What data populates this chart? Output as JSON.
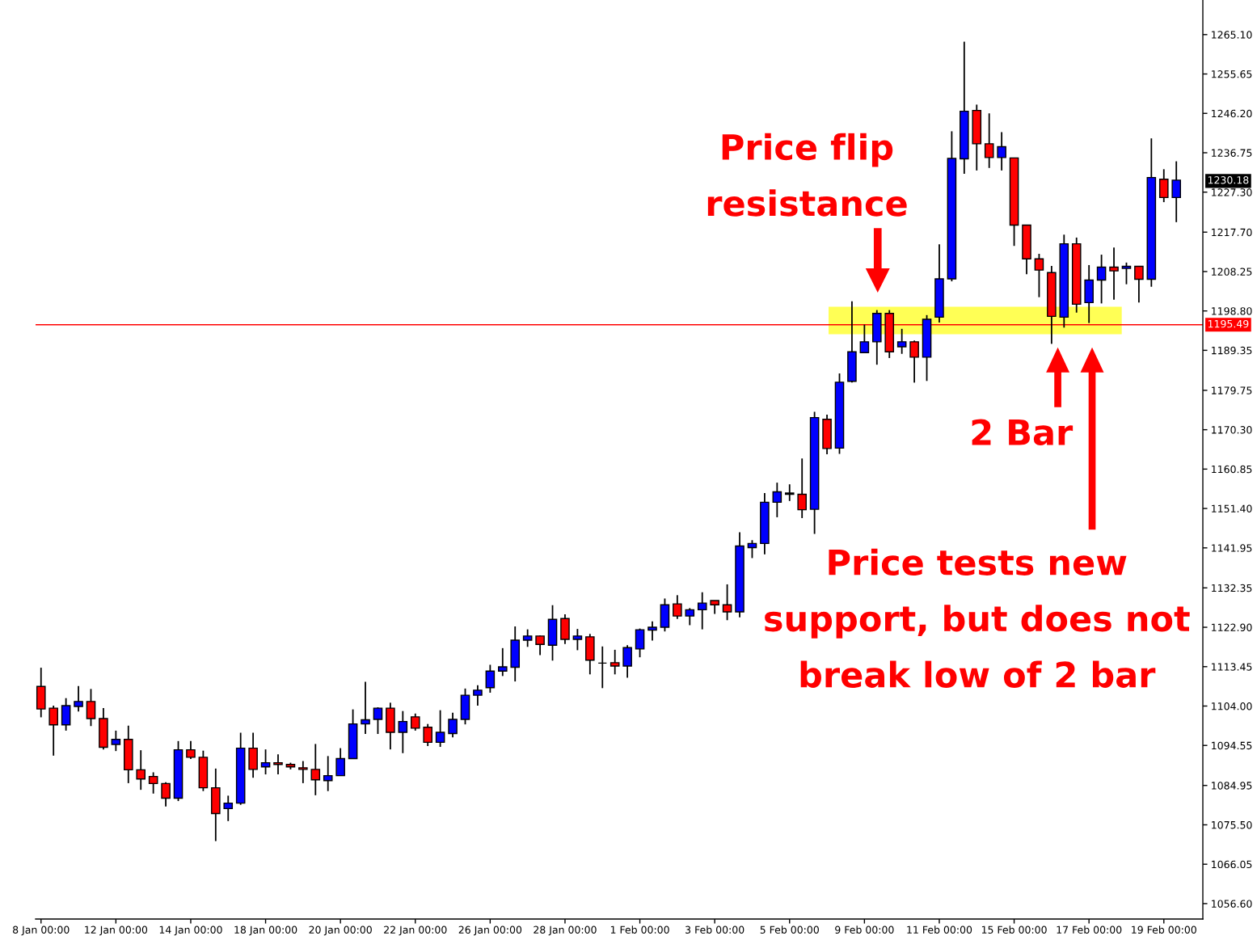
{
  "chart_data": {
    "type": "candlestick",
    "categories": [
      "8 Jan 00:00",
      null,
      null,
      null,
      null,
      null,
      "12 Jan 00:00",
      null,
      null,
      null,
      null,
      null,
      "14 Jan 00:00",
      null,
      null,
      null,
      null,
      null,
      "18 Jan 00:00",
      null,
      null,
      null,
      null,
      null,
      "20 Jan 00:00",
      null,
      null,
      null,
      null,
      null,
      "22 Jan 00:00",
      null,
      null,
      null,
      null,
      null,
      "26 Jan 00:00",
      null,
      null,
      null,
      null,
      null,
      "28 Jan 00:00",
      null,
      null,
      null,
      null,
      null,
      "1 Feb 00:00",
      null,
      null,
      null,
      null,
      null,
      "3 Feb 00:00",
      null,
      null,
      null,
      null,
      null,
      "5 Feb 00:00",
      null,
      null,
      null,
      null,
      null,
      "9 Feb 00:00",
      null,
      null,
      null,
      null,
      null,
      "11 Feb 00:00",
      null,
      null,
      null,
      null,
      null,
      "15 Feb 00:00",
      null,
      null,
      null,
      null,
      null,
      "17 Feb 00:00",
      null,
      null,
      null,
      null,
      null,
      "19 Feb 00:00",
      null
    ],
    "ohlc": [
      [
        1108.7,
        1113.2,
        1101.3,
        1103.3
      ],
      [
        1103.5,
        1104.1,
        1092.1,
        1099.5
      ],
      [
        1099.5,
        1105.9,
        1098.1,
        1104.1
      ],
      [
        1103.9,
        1108.8,
        1102.7,
        1105.1
      ],
      [
        1105.1,
        1108.1,
        1099.2,
        1101.0
      ],
      [
        1101.0,
        1103.5,
        1093.6,
        1094.1
      ],
      [
        1094.8,
        1098.1,
        1093.2,
        1096.0
      ],
      [
        1096.0,
        1099.3,
        1085.5,
        1088.7
      ],
      [
        1088.7,
        1093.4,
        1083.9,
        1086.5
      ],
      [
        1087.1,
        1088.1,
        1083.0,
        1085.4
      ],
      [
        1085.4,
        1085.7,
        1079.9,
        1081.9
      ],
      [
        1081.9,
        1095.6,
        1081.2,
        1093.5
      ],
      [
        1093.5,
        1095.6,
        1091.3,
        1091.7
      ],
      [
        1091.7,
        1093.3,
        1083.6,
        1084.4
      ],
      [
        1084.4,
        1089.0,
        1071.6,
        1078.2
      ],
      [
        1079.4,
        1082.5,
        1076.4,
        1080.7
      ],
      [
        1080.7,
        1097.6,
        1080.3,
        1093.9
      ],
      [
        1093.9,
        1097.6,
        1086.8,
        1088.8
      ],
      [
        1089.4,
        1093.6,
        1087.6,
        1090.4
      ],
      [
        1090.4,
        1092.4,
        1087.6,
        1090.0
      ],
      [
        1090.0,
        1090.4,
        1088.8,
        1089.4
      ],
      [
        1089.2,
        1090.8,
        1085.5,
        1088.8
      ],
      [
        1088.8,
        1094.9,
        1082.6,
        1086.3
      ],
      [
        1086.1,
        1092.0,
        1083.6,
        1087.3
      ],
      [
        1087.3,
        1093.9,
        1087.3,
        1091.4
      ],
      [
        1091.4,
        1103.2,
        1091.4,
        1099.7
      ],
      [
        1099.7,
        1109.8,
        1097.3,
        1100.7
      ],
      [
        1100.8,
        1103.7,
        1097.3,
        1103.5
      ],
      [
        1103.5,
        1104.8,
        1093.6,
        1097.7
      ],
      [
        1097.7,
        1102.8,
        1092.7,
        1100.3
      ],
      [
        1101.4,
        1102.2,
        1098.1,
        1098.7
      ],
      [
        1098.9,
        1099.7,
        1094.4,
        1095.3
      ],
      [
        1095.3,
        1103.0,
        1094.2,
        1097.7
      ],
      [
        1097.4,
        1102.4,
        1096.5,
        1100.8
      ],
      [
        1100.8,
        1108.2,
        1099.6,
        1106.6
      ],
      [
        1106.6,
        1109.0,
        1104.1,
        1107.8
      ],
      [
        1108.4,
        1113.9,
        1107.2,
        1112.4
      ],
      [
        1112.4,
        1117.9,
        1111.2,
        1113.4
      ],
      [
        1113.3,
        1123.1,
        1109.9,
        1119.8
      ],
      [
        1119.8,
        1122.4,
        1118.2,
        1120.8
      ],
      [
        1120.8,
        1120.9,
        1116.2,
        1118.8
      ],
      [
        1118.6,
        1128.2,
        1114.9,
        1124.8
      ],
      [
        1125.0,
        1126.0,
        1118.9,
        1120.0
      ],
      [
        1120.0,
        1122.5,
        1117.4,
        1120.8
      ],
      [
        1120.6,
        1121.3,
        1111.6,
        1115.0
      ],
      [
        1114.3,
        1118.3,
        1108.3,
        1114.3
      ],
      [
        1114.4,
        1117.5,
        1111.6,
        1113.6
      ],
      [
        1113.6,
        1118.6,
        1110.8,
        1118.0
      ],
      [
        1117.7,
        1122.6,
        1115.7,
        1122.3
      ],
      [
        1122.2,
        1124.3,
        1119.7,
        1122.9
      ],
      [
        1122.9,
        1129.8,
        1121.9,
        1128.3
      ],
      [
        1128.5,
        1130.6,
        1124.9,
        1125.6
      ],
      [
        1125.6,
        1127.5,
        1123.4,
        1127.1
      ],
      [
        1127.1,
        1131.3,
        1122.4,
        1128.7
      ],
      [
        1129.3,
        1129.3,
        1126.1,
        1128.3
      ],
      [
        1128.3,
        1133.2,
        1124.6,
        1126.6
      ],
      [
        1126.6,
        1145.7,
        1125.3,
        1142.4
      ],
      [
        1142.0,
        1143.8,
        1139.5,
        1143.0
      ],
      [
        1143.0,
        1155.1,
        1140.4,
        1152.9
      ],
      [
        1152.9,
        1157.6,
        1149.3,
        1155.4
      ],
      [
        1155.1,
        1157.2,
        1153.2,
        1154.8
      ],
      [
        1154.8,
        1163.4,
        1149.1,
        1151.1
      ],
      [
        1151.2,
        1174.6,
        1145.3,
        1173.2
      ],
      [
        1172.8,
        1173.9,
        1164.4,
        1165.8
      ],
      [
        1165.9,
        1183.8,
        1164.5,
        1181.7
      ],
      [
        1181.9,
        1201.1,
        1181.6,
        1189.0
      ],
      [
        1188.8,
        1195.5,
        1188.8,
        1191.4
      ],
      [
        1191.4,
        1199.0,
        1185.9,
        1198.2
      ],
      [
        1198.2,
        1199.0,
        1187.5,
        1189.0
      ],
      [
        1190.2,
        1194.5,
        1188.5,
        1191.4
      ],
      [
        1191.4,
        1191.7,
        1181.6,
        1187.7
      ],
      [
        1187.7,
        1197.8,
        1182.0,
        1196.8
      ],
      [
        1197.3,
        1214.8,
        1196.0,
        1206.5
      ],
      [
        1206.5,
        1241.9,
        1205.9,
        1235.4
      ],
      [
        1235.3,
        1263.4,
        1231.7,
        1246.7
      ],
      [
        1246.9,
        1248.3,
        1232.5,
        1238.9
      ],
      [
        1238.9,
        1246.2,
        1233.1,
        1235.6
      ],
      [
        1235.6,
        1241.7,
        1232.5,
        1238.2
      ],
      [
        1235.5,
        1235.5,
        1214.4,
        1219.4
      ],
      [
        1219.4,
        1219.4,
        1207.6,
        1211.3
      ],
      [
        1211.3,
        1212.5,
        1202.1,
        1208.6
      ],
      [
        1208.0,
        1209.6,
        1190.9,
        1197.5
      ],
      [
        1197.3,
        1217.1,
        1194.8,
        1214.9
      ],
      [
        1214.9,
        1216.4,
        1198.4,
        1200.4
      ],
      [
        1200.8,
        1209.8,
        1195.9,
        1206.2
      ],
      [
        1206.2,
        1212.3,
        1200.6,
        1209.3
      ],
      [
        1209.3,
        1214.0,
        1201.5,
        1208.4
      ],
      [
        1209.0,
        1210.4,
        1205.2,
        1209.5
      ],
      [
        1209.5,
        1209.5,
        1200.8,
        1206.4
      ],
      [
        1206.4,
        1240.2,
        1204.6,
        1230.8
      ],
      [
        1230.4,
        1232.8,
        1224.9,
        1226.0
      ],
      [
        1226.0,
        1234.7,
        1220.1,
        1230.18
      ]
    ],
    "colors": [
      "#ff0000",
      "#ff0000",
      "#0000ff",
      "#0000ff",
      "#ff0000",
      "#ff0000",
      "#0000ff",
      "#ff0000",
      "#ff0000",
      "#ff0000",
      "#ff0000",
      "#0000ff",
      "#ff0000",
      "#ff0000",
      "#ff0000",
      "#0000ff",
      "#0000ff",
      "#ff0000",
      "#0000ff",
      "#ff0000",
      "#ff0000",
      "#ff0000",
      "#ff0000",
      "#0000ff",
      "#0000ff",
      "#0000ff",
      "#0000ff",
      "#0000ff",
      "#ff0000",
      "#0000ff",
      "#ff0000",
      "#ff0000",
      "#0000ff",
      "#0000ff",
      "#0000ff",
      "#0000ff",
      "#0000ff",
      "#0000ff",
      "#0000ff",
      "#0000ff",
      "#ff0000",
      "#0000ff",
      "#ff0000",
      "#0000ff",
      "#ff0000",
      "#000000",
      "#ff0000",
      "#0000ff",
      "#0000ff",
      "#0000ff",
      "#0000ff",
      "#ff0000",
      "#0000ff",
      "#0000ff",
      "#ff0000",
      "#ff0000",
      "#0000ff",
      "#0000ff",
      "#0000ff",
      "#0000ff",
      "#ff0000",
      "#ff0000",
      "#0000ff",
      "#ff0000",
      "#0000ff",
      "#0000ff",
      "#0000ff",
      "#0000ff",
      "#ff0000",
      "#0000ff",
      "#ff0000",
      "#0000ff",
      "#0000ff",
      "#0000ff",
      "#0000ff",
      "#ff0000",
      "#ff0000",
      "#0000ff",
      "#ff0000",
      "#ff0000",
      "#ff0000",
      "#ff0000",
      "#0000ff",
      "#ff0000",
      "#0000ff",
      "#0000ff",
      "#ff0000",
      "#0000ff",
      "#ff0000",
      "#0000ff",
      "#ff0000",
      "#0000ff"
    ],
    "ylim": [
      1052.9,
      1273.4
    ],
    "yticks": [
      {
        "value": 1056.6,
        "label": "1056.60"
      },
      {
        "value": 1066.05,
        "label": "1066.05"
      },
      {
        "value": 1075.5,
        "label": "1075.50"
      },
      {
        "value": 1084.95,
        "label": "1084.95"
      },
      {
        "value": 1094.55,
        "label": "1094.55"
      },
      {
        "value": 1104.0,
        "label": "1104.00"
      },
      {
        "value": 1113.45,
        "label": "1113.45"
      },
      {
        "value": 1122.9,
        "label": "1122.90"
      },
      {
        "value": 1132.35,
        "label": "1132.35"
      },
      {
        "value": 1141.95,
        "label": "1141.95"
      },
      {
        "value": 1151.4,
        "label": "1151.40"
      },
      {
        "value": 1160.85,
        "label": "1160.85"
      },
      {
        "value": 1170.3,
        "label": "1170.30"
      },
      {
        "value": 1179.75,
        "label": "1179.75"
      },
      {
        "value": 1189.35,
        "label": "1189.35"
      },
      {
        "value": 1198.8,
        "label": "1198.80"
      },
      {
        "value": 1208.25,
        "label": "1208.25"
      },
      {
        "value": 1217.7,
        "label": "1217.70"
      },
      {
        "value": 1227.3,
        "label": "1227.30"
      },
      {
        "value": 1236.75,
        "label": "1236.75"
      },
      {
        "value": 1246.2,
        "label": "1246.20"
      },
      {
        "value": 1255.65,
        "label": "1255.65"
      },
      {
        "value": 1265.1,
        "label": "1265.10"
      }
    ],
    "ref_lines": [
      {
        "axis": "y",
        "value": 1195.49,
        "label": "1195.49",
        "color": "#ff0000"
      }
    ],
    "bands": [
      {
        "axis": "y",
        "from": 1193.2,
        "to": 1199.8,
        "color": "#ffff55"
      }
    ],
    "annotations": [
      "Price flip\nresistance",
      "2 Bar",
      "Price tests new\nsupport, but does not\nbreak low of 2 bar",
      "1230.18"
    ]
  }
}
